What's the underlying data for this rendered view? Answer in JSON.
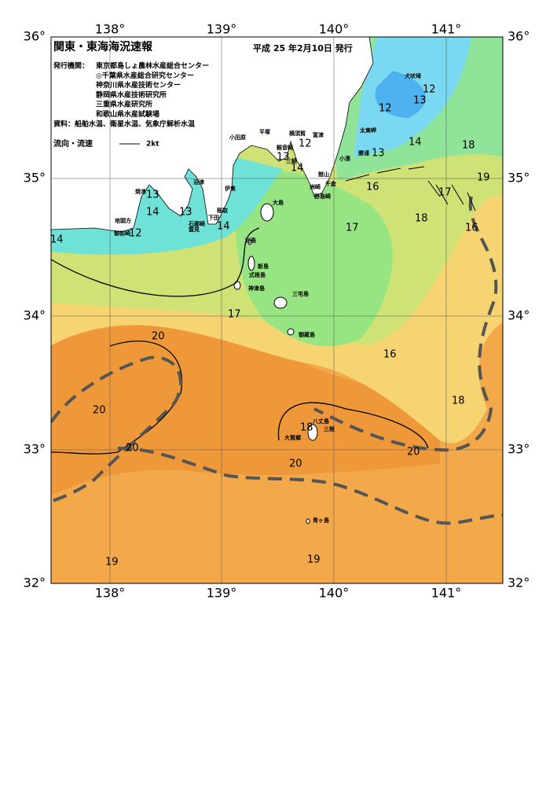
{
  "header": {
    "title": "関東・東海海況速報",
    "date": "平成 25 年2月10日 発行",
    "publisher_label": "発行機関：",
    "publishers": [
      "東京都島しょ農林水産総合センター",
      "◎千葉県水産総合研究センター",
      "神奈川県水産技術センター",
      "静岡県水産技術研究所",
      "三重県水産研究所",
      "和歌山県水産試験場"
    ],
    "sources": "資料：船舶水温、衛星水温、気象庁解析水温",
    "current_label": "流向・流速",
    "current_scale": "2kt"
  },
  "map": {
    "lon_labels": [
      "138°",
      "139°",
      "140°",
      "141°"
    ],
    "lat_labels": [
      "36°",
      "35°",
      "34°",
      "33°",
      "32°"
    ],
    "place_names": [
      "犬吠埼",
      "太東岬",
      "勝浦",
      "小湊",
      "館山",
      "千倉",
      "野島崎",
      "洲崎",
      "富津",
      "観音崎",
      "横須賀",
      "三崎",
      "平塚",
      "小田原",
      "伊東",
      "稲取",
      "下田",
      "石廊崎",
      "雲見",
      "沼津",
      "焼津",
      "御前崎",
      "地頭方",
      "大島",
      "利島",
      "新島",
      "式根島",
      "神津島",
      "三宅島",
      "御蔵島",
      "八丈島",
      "三根",
      "大賀郷",
      "青ヶ島"
    ],
    "contour_labels": [
      "14",
      "13",
      "14",
      "13",
      "12",
      "14",
      "13",
      "14",
      "12",
      "12",
      "13",
      "12",
      "13",
      "14",
      "18",
      "19",
      "16",
      "17",
      "18",
      "16",
      "17",
      "17",
      "16",
      "20",
      "20",
      "20",
      "18",
      "20",
      "20",
      "18",
      "19",
      "19"
    ]
  }
}
